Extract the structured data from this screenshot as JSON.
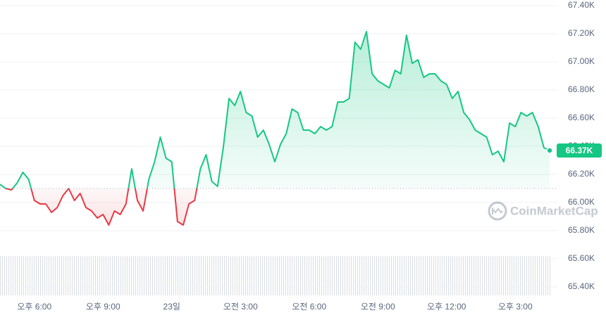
{
  "chart_data": {
    "type": "line",
    "categories": [
      null,
      null,
      null,
      null,
      null,
      null,
      "오후 6:00",
      null,
      null,
      null,
      null,
      null,
      null,
      null,
      null,
      null,
      null,
      null,
      "오후 9:00",
      null,
      null,
      null,
      null,
      null,
      null,
      null,
      null,
      null,
      null,
      null,
      "23일",
      null,
      null,
      null,
      null,
      null,
      null,
      null,
      null,
      null,
      null,
      null,
      "오전 3:00",
      null,
      null,
      null,
      null,
      null,
      null,
      null,
      null,
      null,
      null,
      null,
      "오전 6:00",
      null,
      null,
      null,
      null,
      null,
      null,
      null,
      null,
      null,
      null,
      null,
      "오전 9:00",
      null,
      null,
      null,
      null,
      null,
      null,
      null,
      null,
      null,
      null,
      null,
      "오후 12:00",
      null,
      null,
      null,
      null,
      null,
      null,
      null,
      null,
      null,
      null,
      null,
      "오후 3:00",
      null,
      null,
      null,
      null,
      null,
      null
    ],
    "values": [
      66130,
      66100,
      66090,
      66140,
      66215,
      66165,
      66015,
      65990,
      65990,
      65930,
      65965,
      66050,
      66100,
      66015,
      66065,
      65965,
      65940,
      65890,
      65915,
      65840,
      65940,
      65915,
      65990,
      66240,
      66015,
      65940,
      66165,
      66290,
      66465,
      66315,
      66290,
      65865,
      65840,
      65990,
      66015,
      66240,
      66340,
      66150,
      66115,
      66390,
      66740,
      66690,
      66790,
      66640,
      66615,
      66465,
      66515,
      66415,
      66290,
      66415,
      66490,
      66665,
      66640,
      66515,
      66515,
      66490,
      66540,
      66515,
      66540,
      66715,
      66715,
      66740,
      67140,
      67090,
      67215,
      66915,
      66865,
      66840,
      66815,
      66940,
      66915,
      67190,
      66990,
      67015,
      66890,
      66915,
      66915,
      66865,
      66840,
      66740,
      66790,
      66640,
      66590,
      66515,
      66490,
      66465,
      66340,
      66365,
      66290,
      66565,
      66540,
      66640,
      66615,
      66640,
      66540,
      66390,
      66370
    ],
    "baseline": 66100,
    "up_color": "#16c784",
    "down_color": "#ea3943",
    "ylim": [
      65300,
      67400
    ],
    "yticks": [
      {
        "value": 65400,
        "label": "65.40K"
      },
      {
        "value": 65600,
        "label": "65.60K"
      },
      {
        "value": 65800,
        "label": "65.80K"
      },
      {
        "value": 66000,
        "label": "66.00K"
      },
      {
        "value": 66200,
        "label": "66.20K"
      },
      {
        "value": 66400,
        "label": "66.40K"
      },
      {
        "value": 66600,
        "label": "66.60K"
      },
      {
        "value": 66800,
        "label": "66.80K"
      },
      {
        "value": 67000,
        "label": "67.00K"
      },
      {
        "value": 67200,
        "label": "67.20K"
      },
      {
        "value": 67400,
        "label": "67.40K"
      }
    ],
    "grid": true,
    "current": {
      "value": 66370,
      "label": "66.37K"
    },
    "watermark": "CoinMarketCap"
  }
}
